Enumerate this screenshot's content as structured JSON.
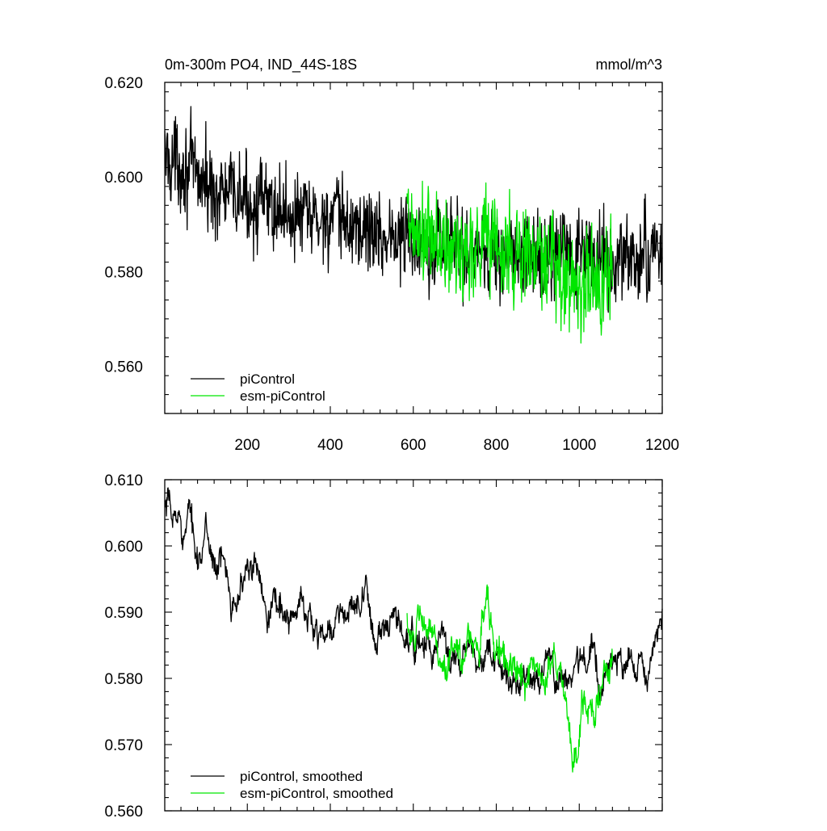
{
  "colors": {
    "picontrol": "#000000",
    "esm": "#00e600",
    "axis": "#000000",
    "background": "#ffffff"
  },
  "chart_data": [
    {
      "type": "line",
      "title": "0m-300m PO4, IND_44S-18S",
      "unit_label": "mmol/m^3",
      "xlim": [
        1,
        1200
      ],
      "ylim": [
        0.55,
        0.62
      ],
      "yticks": [
        0.56,
        0.58,
        0.6,
        0.62
      ],
      "ytick_labels": [
        "0.560",
        "0.580",
        "0.600",
        "0.620"
      ],
      "xticks": [
        200,
        400,
        600,
        800,
        1000,
        1200
      ],
      "xtick_labels": [
        "200",
        "400",
        "600",
        "800",
        "1000",
        "1200"
      ],
      "legend_position": "bottom-left",
      "grid": false,
      "series": [
        {
          "name": "piControl",
          "color_key": "picontrol",
          "x": [
            1,
            40,
            80,
            120,
            160,
            200,
            240,
            280,
            320,
            360,
            400,
            440,
            480,
            520,
            560,
            600,
            640,
            680,
            720,
            760,
            800,
            840,
            880,
            920,
            960,
            1000,
            1040,
            1080,
            1120,
            1160,
            1200
          ],
          "y": [
            0.604,
            0.603,
            0.6,
            0.597,
            0.596,
            0.595,
            0.594,
            0.593,
            0.592,
            0.591,
            0.591,
            0.59,
            0.589,
            0.588,
            0.587,
            0.587,
            0.587,
            0.586,
            0.585,
            0.585,
            0.584,
            0.583,
            0.583,
            0.583,
            0.583,
            0.583,
            0.583,
            0.582,
            0.582,
            0.583,
            0.585
          ],
          "spread": [
            0.0045,
            0.0045,
            0.0045,
            0.0045,
            0.0045,
            0.0045,
            0.0045,
            0.0045,
            0.0045,
            0.0045,
            0.0045,
            0.0045,
            0.0045,
            0.0045,
            0.0045,
            0.0045,
            0.0045,
            0.0045,
            0.0045,
            0.0045,
            0.0045,
            0.0045,
            0.0045,
            0.0045,
            0.0045,
            0.0045,
            0.0045,
            0.0045,
            0.0045,
            0.0045,
            0.0045
          ]
        },
        {
          "name": "esm-piControl",
          "color_key": "esm",
          "x": [
            585,
            620,
            660,
            700,
            740,
            780,
            820,
            860,
            900,
            940,
            980,
            1020,
            1060,
            1080
          ],
          "y": [
            0.589,
            0.586,
            0.586,
            0.583,
            0.585,
            0.589,
            0.583,
            0.584,
            0.582,
            0.58,
            0.578,
            0.577,
            0.579,
            0.581
          ],
          "spread": [
            0.0055,
            0.0055,
            0.0055,
            0.0055,
            0.0055,
            0.0055,
            0.0055,
            0.0055,
            0.0055,
            0.0055,
            0.006,
            0.006,
            0.0055,
            0.0055
          ]
        }
      ]
    },
    {
      "type": "line",
      "xlim": [
        1,
        1200
      ],
      "ylim": [
        0.56,
        0.61
      ],
      "yticks": [
        0.56,
        0.57,
        0.58,
        0.59,
        0.6,
        0.61
      ],
      "ytick_labels": [
        "0.560",
        "0.570",
        "0.580",
        "0.590",
        "0.600",
        "0.610"
      ],
      "xticks": [
        200,
        400,
        600,
        800,
        1000,
        1200
      ],
      "legend_position": "bottom-left",
      "grid": false,
      "series": [
        {
          "name": "piControl, smoothed",
          "color_key": "picontrol",
          "x": [
            1,
            20,
            40,
            60,
            80,
            100,
            140,
            160,
            200,
            240,
            300,
            340,
            400,
            440,
            480,
            520,
            560,
            600,
            640,
            700,
            760,
            820,
            880,
            940,
            980,
            1020,
            1080,
            1120,
            1160,
            1200
          ],
          "y": [
            0.605,
            0.602,
            0.604,
            0.603,
            0.6,
            0.601,
            0.596,
            0.595,
            0.596,
            0.594,
            0.59,
            0.589,
            0.588,
            0.59,
            0.59,
            0.586,
            0.585,
            0.584,
            0.585,
            0.582,
            0.582,
            0.58,
            0.581,
            0.582,
            0.581,
            0.582,
            0.581,
            0.583,
            0.578,
            0.588
          ],
          "spread": [
            0.003,
            0.003,
            0.003,
            0.003,
            0.003,
            0.003,
            0.003,
            0.003,
            0.003,
            0.003,
            0.003,
            0.003,
            0.003,
            0.003,
            0.003,
            0.003,
            0.003,
            0.003,
            0.003,
            0.003,
            0.003,
            0.003,
            0.003,
            0.003,
            0.003,
            0.003,
            0.003,
            0.003,
            0.003,
            0.003
          ]
        },
        {
          "name": "esm-piControl, smoothed",
          "color_key": "esm",
          "x": [
            585,
            620,
            660,
            700,
            740,
            780,
            820,
            860,
            900,
            940,
            975,
            990,
            1020,
            1050,
            1080
          ],
          "y": [
            0.59,
            0.586,
            0.584,
            0.582,
            0.585,
            0.59,
            0.582,
            0.58,
            0.583,
            0.582,
            0.575,
            0.568,
            0.577,
            0.578,
            0.58
          ],
          "spread": [
            0.0032,
            0.0032,
            0.0032,
            0.0032,
            0.0035,
            0.004,
            0.0035,
            0.0032,
            0.0032,
            0.0032,
            0.004,
            0.004,
            0.0035,
            0.0032,
            0.0032
          ]
        }
      ]
    }
  ]
}
